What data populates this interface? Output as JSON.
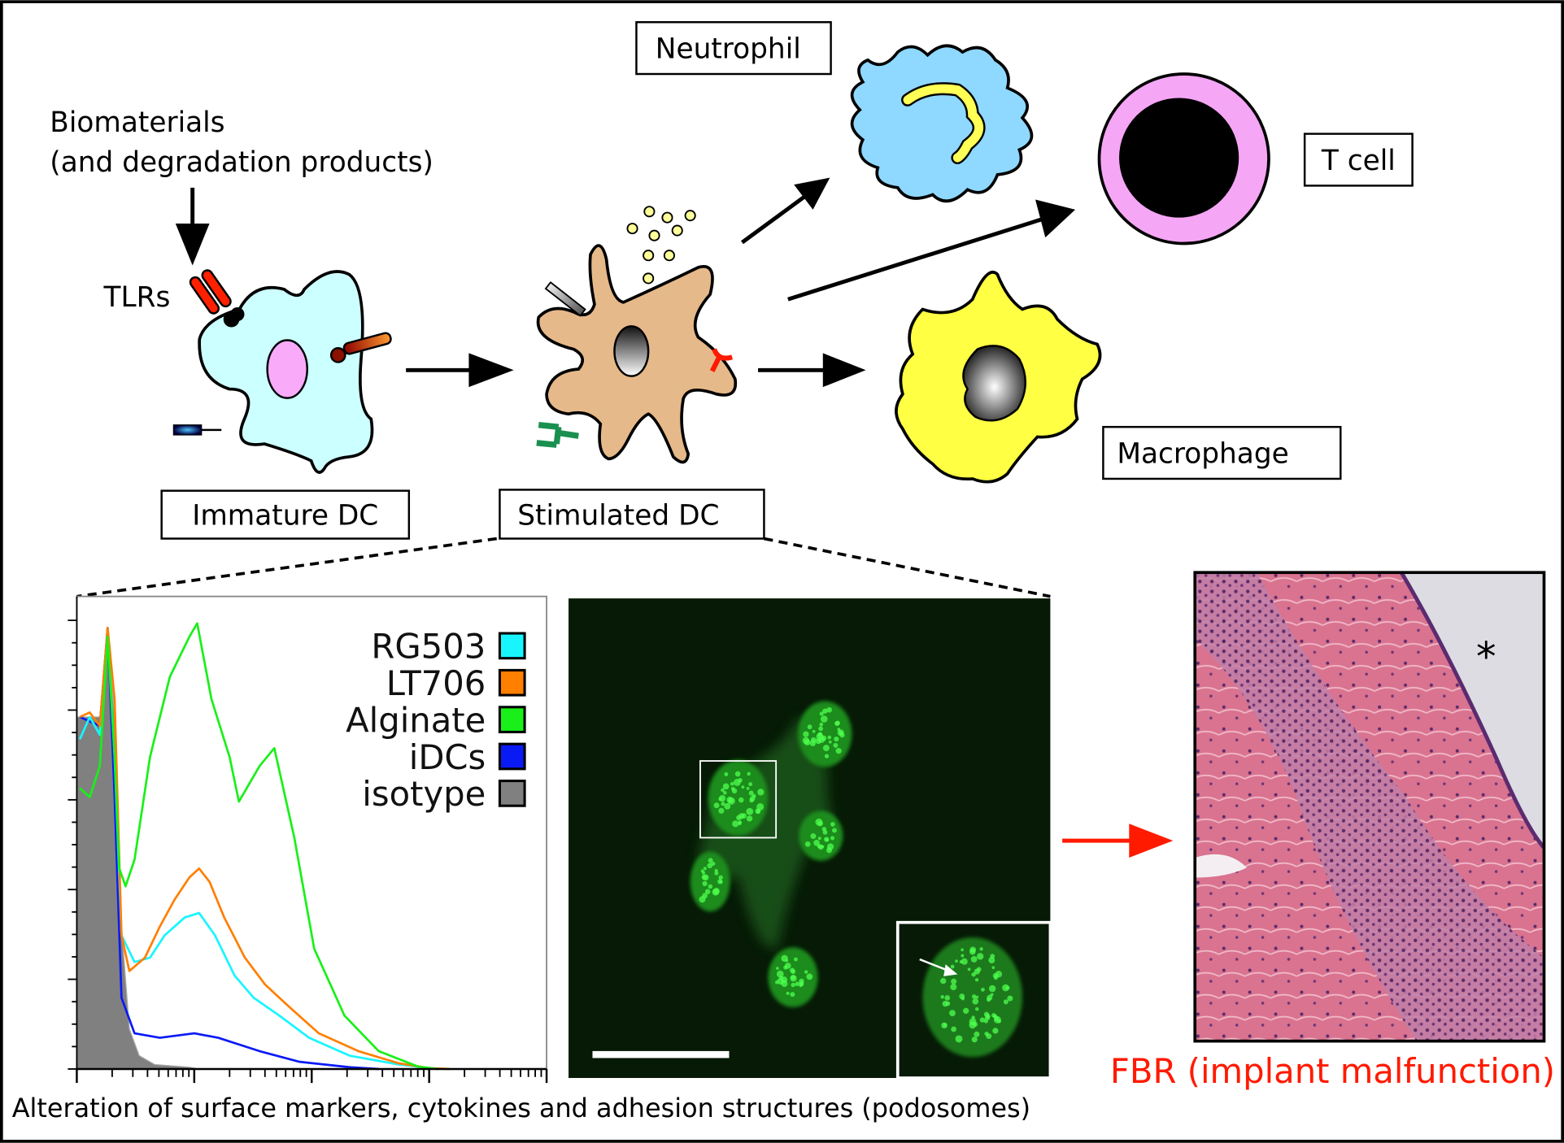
{
  "labels": {
    "biomaterials_line1": "Biomaterials",
    "biomaterials_line2": "(and degradation products)",
    "tlrs": "TLRs",
    "immature_dc": "Immature DC",
    "stimulated_dc": "Stimulated DC",
    "neutrophil": "Neutrophil",
    "t_cell": "T cell",
    "macrophage": "Macrophage",
    "caption": "Alteration of surface markers, cytokines and adhesion structures (podosomes)",
    "fbr": "FBR (implant malfunction)",
    "asterisk": "*"
  },
  "colors": {
    "fbr_text": "#ff1a00",
    "fbr_arrow": "#ff1a00",
    "immature_dc_fill": "#ccffff",
    "stimulated_dc_fill": "#e6b98a",
    "neutrophil_fill": "#8fd8ff",
    "macrophage_fill": "#ffff44",
    "t_cell_ring": "#f5a6f5"
  },
  "chart_data": {
    "type": "line",
    "subtype": "flow-cytometry-histogram",
    "x_scale": "log",
    "xlim": [
      1,
      10000
    ],
    "ylim": [
      0,
      100
    ],
    "xlabel": "",
    "ylabel": "",
    "grid": false,
    "legend_position": "top-right",
    "legend": [
      {
        "name": "RG503",
        "color": "#19f5ff"
      },
      {
        "name": "LT706",
        "color": "#ff7f00"
      },
      {
        "name": "Alginate",
        "color": "#19f019"
      },
      {
        "name": "iDCs",
        "color": "#0a1af5"
      },
      {
        "name": "isotype",
        "color": "#808080"
      }
    ],
    "series": [
      {
        "name": "isotype",
        "filled": true,
        "color": "#808080",
        "x": [
          1.06,
          1.57,
          1.83,
          2.1,
          2.4,
          2.8,
          3.4,
          4.6,
          9.1,
          11
        ],
        "y": [
          79,
          79,
          99,
          79,
          32,
          9,
          3,
          1,
          0.4,
          0
        ]
      },
      {
        "name": "iDCs",
        "color": "#0a1af5",
        "x": [
          1.06,
          1.57,
          1.83,
          2.1,
          2.4,
          3.1,
          5.1,
          10,
          16,
          36,
          79,
          210,
          372
        ],
        "y": [
          79,
          77,
          99,
          61,
          16,
          8,
          7,
          8,
          7,
          4,
          1.6,
          0.4,
          0
        ]
      },
      {
        "name": "RG503",
        "color": "#19f5ff",
        "x": [
          1.06,
          1.29,
          1.57,
          1.83,
          2.1,
          2.4,
          3.1,
          4.2,
          5.6,
          8.3,
          11,
          15,
          22,
          32,
          53,
          95,
          210,
          550,
          1200
        ],
        "y": [
          74,
          79,
          75,
          99,
          70,
          30,
          24,
          25,
          30,
          34,
          35,
          30,
          21,
          16,
          12,
          7,
          3,
          1,
          0
        ]
      },
      {
        "name": "LT706",
        "color": "#ff7f00",
        "x": [
          1.06,
          1.29,
          1.57,
          1.83,
          2.1,
          2.4,
          2.8,
          3.8,
          5.1,
          6.8,
          9.1,
          11,
          13.5,
          18,
          27,
          40,
          64,
          115,
          250,
          550,
          1000,
          1500
        ],
        "y": [
          79,
          80,
          77,
          99,
          83,
          30,
          22,
          25,
          32,
          38,
          43,
          45,
          42,
          34,
          25,
          19,
          14,
          8,
          4,
          1.3,
          0.2,
          0
        ]
      },
      {
        "name": "Alginate",
        "color": "#19f019",
        "x": [
          1.06,
          1.29,
          1.57,
          1.83,
          2.1,
          2.3,
          2.6,
          3.1,
          4.2,
          6.2,
          9.1,
          10.6,
          14,
          20,
          24,
          36,
          48,
          71,
          105,
          190,
          372,
          815,
          1200
        ],
        "y": [
          63,
          61,
          68,
          97,
          70,
          45,
          41,
          47,
          70,
          88,
          97,
          100,
          83,
          70,
          60,
          68,
          72,
          52,
          27,
          12,
          4,
          0.5,
          0
        ]
      }
    ]
  }
}
